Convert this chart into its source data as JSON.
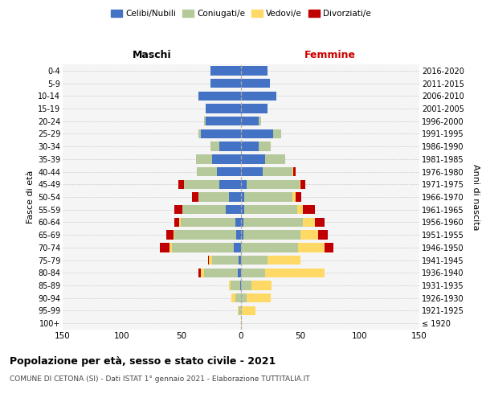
{
  "age_groups": [
    "100+",
    "95-99",
    "90-94",
    "85-89",
    "80-84",
    "75-79",
    "70-74",
    "65-69",
    "60-64",
    "55-59",
    "50-54",
    "45-49",
    "40-44",
    "35-39",
    "30-34",
    "25-29",
    "20-24",
    "15-19",
    "10-14",
    "5-9",
    "0-4"
  ],
  "birth_years": [
    "≤ 1920",
    "1921-1925",
    "1926-1930",
    "1931-1935",
    "1936-1940",
    "1941-1945",
    "1946-1950",
    "1951-1955",
    "1956-1960",
    "1961-1965",
    "1966-1970",
    "1971-1975",
    "1976-1980",
    "1981-1985",
    "1986-1990",
    "1991-1995",
    "1996-2000",
    "2001-2005",
    "2006-2010",
    "2011-2015",
    "2016-2020"
  ],
  "males": {
    "celibe": [
      0,
      0,
      0,
      1,
      3,
      2,
      6,
      4,
      5,
      13,
      10,
      18,
      20,
      24,
      18,
      34,
      30,
      30,
      36,
      26,
      26
    ],
    "coniugato": [
      0,
      2,
      5,
      8,
      28,
      22,
      52,
      52,
      46,
      36,
      26,
      30,
      17,
      14,
      8,
      2,
      1,
      0,
      0,
      0,
      0
    ],
    "vedovo": [
      0,
      1,
      3,
      1,
      3,
      3,
      2,
      1,
      1,
      0,
      0,
      0,
      0,
      0,
      0,
      0,
      0,
      0,
      0,
      0,
      0
    ],
    "divorziato": [
      0,
      0,
      0,
      0,
      2,
      1,
      8,
      6,
      4,
      7,
      5,
      5,
      0,
      0,
      0,
      0,
      0,
      0,
      0,
      0,
      0
    ]
  },
  "females": {
    "celibe": [
      0,
      0,
      0,
      0,
      0,
      0,
      0,
      2,
      2,
      3,
      3,
      5,
      18,
      20,
      15,
      27,
      15,
      22,
      30,
      24,
      22
    ],
    "coniugato": [
      0,
      0,
      5,
      9,
      20,
      22,
      48,
      48,
      50,
      44,
      40,
      44,
      25,
      17,
      10,
      7,
      2,
      0,
      0,
      0,
      0
    ],
    "vedovo": [
      1,
      12,
      20,
      17,
      50,
      28,
      22,
      15,
      10,
      5,
      3,
      1,
      1,
      0,
      0,
      0,
      0,
      0,
      0,
      0,
      0
    ],
    "divorziato": [
      0,
      0,
      0,
      0,
      0,
      0,
      8,
      8,
      8,
      10,
      5,
      4,
      2,
      0,
      0,
      0,
      0,
      0,
      0,
      0,
      0
    ]
  },
  "colors": {
    "celibe": "#4472c4",
    "coniugato": "#b5c99a",
    "vedovo": "#ffd966",
    "divorziato": "#c00000"
  },
  "title": "Popolazione per età, sesso e stato civile - 2021",
  "subtitle": "COMUNE DI CETONA (SI) - Dati ISTAT 1° gennaio 2021 - Elaborazione TUTTITALIA.IT",
  "xlabel_left": "Maschi",
  "xlabel_right": "Femmine",
  "ylabel_left": "Fasce di età",
  "ylabel_right": "Anni di nascita",
  "xlim": 150,
  "bg_color": "#f5f5f5",
  "grid_color": "#cccccc"
}
